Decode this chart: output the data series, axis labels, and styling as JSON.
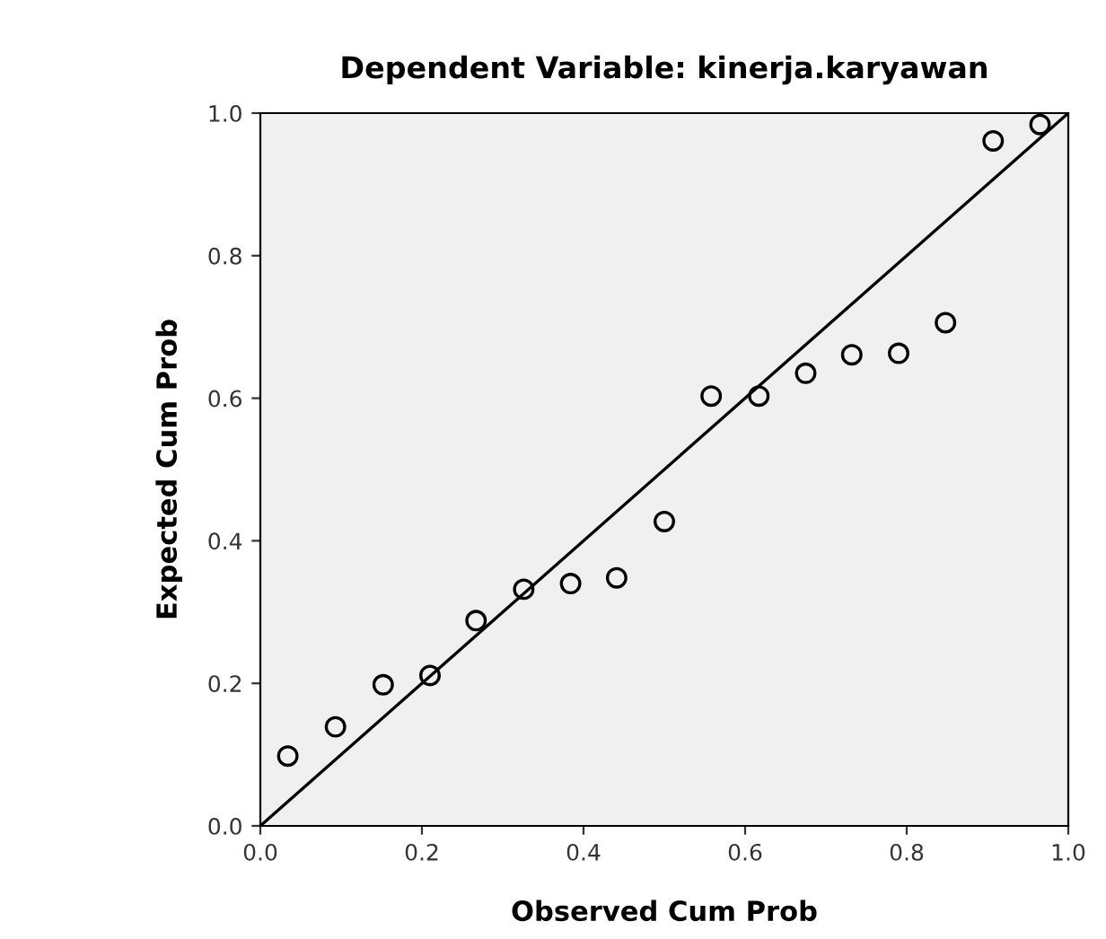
{
  "chart_data": {
    "type": "scatter",
    "title": "Dependent Variable: kinerja.karyawan",
    "xlabel": "Observed Cum Prob",
    "ylabel": "Expected Cum Prob",
    "xlim": [
      0.0,
      1.0
    ],
    "ylim": [
      0.0,
      1.0
    ],
    "xticks": [
      {
        "value": 0.0,
        "label": "0.0"
      },
      {
        "value": 0.2,
        "label": "0.2"
      },
      {
        "value": 0.4,
        "label": "0.4"
      },
      {
        "value": 0.6,
        "label": "0.6"
      },
      {
        "value": 0.8,
        "label": "0.8"
      },
      {
        "value": 1.0,
        "label": "1.0"
      }
    ],
    "yticks": [
      {
        "value": 0.0,
        "label": "0.0"
      },
      {
        "value": 0.2,
        "label": "0.2"
      },
      {
        "value": 0.4,
        "label": "0.4"
      },
      {
        "value": 0.6,
        "label": "0.6"
      },
      {
        "value": 0.8,
        "label": "0.8"
      },
      {
        "value": 1.0,
        "label": "1.0"
      }
    ],
    "grid": false,
    "marker": "circle",
    "series": [
      {
        "color": "#000000",
        "x": [
          0.034,
          0.093,
          0.152,
          0.21,
          0.267,
          0.326,
          0.384,
          0.441,
          0.5,
          0.558,
          0.617,
          0.675,
          0.732,
          0.79,
          0.848,
          0.907,
          0.965
        ],
        "values": [
          0.098,
          0.139,
          0.198,
          0.211,
          0.288,
          0.332,
          0.34,
          0.348,
          0.427,
          0.603,
          0.603,
          0.635,
          0.661,
          0.663,
          0.706,
          0.961,
          0.984
        ]
      },
      {
        "type": "line",
        "color": "#000000",
        "x": [
          0.0,
          1.0
        ],
        "values": [
          0.0,
          1.0
        ],
        "marker": "none",
        "line_style": "solid"
      }
    ]
  }
}
